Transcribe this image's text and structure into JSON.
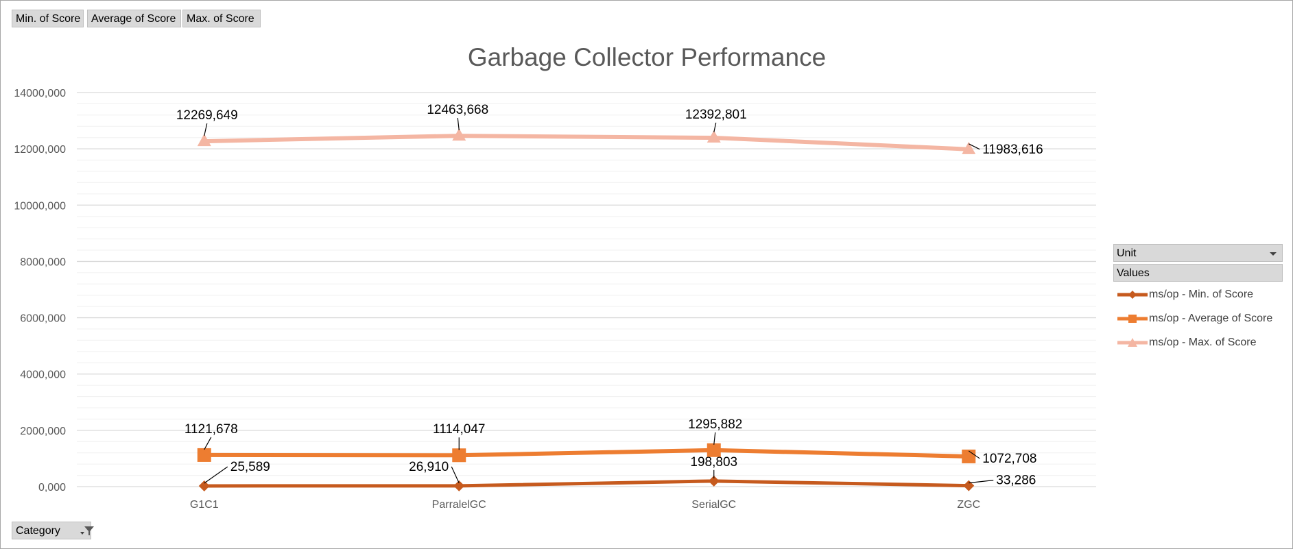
{
  "field_buttons": [
    "Min. of Score",
    "Average of Score",
    "Max. of Score"
  ],
  "legend": {
    "unit_label": "Unit",
    "values_label": "Values",
    "items": [
      "ms/op - Min. of Score",
      "ms/op - Average of Score",
      "ms/op - Max. of Score"
    ]
  },
  "category_button": "Category",
  "colors": {
    "min": "#c65a1e",
    "avg": "#ed7d31",
    "max": "#f4b6a3",
    "grid": "#d9d9d9",
    "text": "#595959"
  },
  "icons": {
    "category_filter": "funnel-filter-icon",
    "unit_dropdown": "chevron-down-icon"
  },
  "chart_data": {
    "type": "line",
    "title": "Garbage Collector Performance",
    "xlabel": "",
    "ylabel": "",
    "categories": [
      "G1C1",
      "ParralelGC",
      "SerialGC",
      "ZGC"
    ],
    "ylim": [
      0,
      14000000
    ],
    "yticks": [
      0,
      2000000,
      4000000,
      6000000,
      8000000,
      10000000,
      12000000,
      14000000
    ],
    "ytick_labels": [
      "0,000",
      "2000,000",
      "4000,000",
      "6000,000",
      "8000,000",
      "10000,000",
      "12000,000",
      "14000,000"
    ],
    "grid": true,
    "legend_position": "right",
    "series": [
      {
        "name": "ms/op - Min. of Score",
        "marker": "diamond",
        "values": [
          25589,
          26910,
          198803,
          33286
        ],
        "labels": [
          "25,589",
          "26,910",
          "198,803",
          "33,286"
        ]
      },
      {
        "name": "ms/op - Average of Score",
        "marker": "square",
        "values": [
          1121678,
          1114047,
          1295882,
          1072708
        ],
        "labels": [
          "1121,678",
          "1114,047",
          "1295,882",
          "1072,708"
        ]
      },
      {
        "name": "ms/op - Max. of Score",
        "marker": "triangle",
        "values": [
          12269649,
          12463668,
          12392801,
          11983616
        ],
        "labels": [
          "12269,649",
          "12463,668",
          "12392,801",
          "11983,616"
        ]
      }
    ]
  }
}
